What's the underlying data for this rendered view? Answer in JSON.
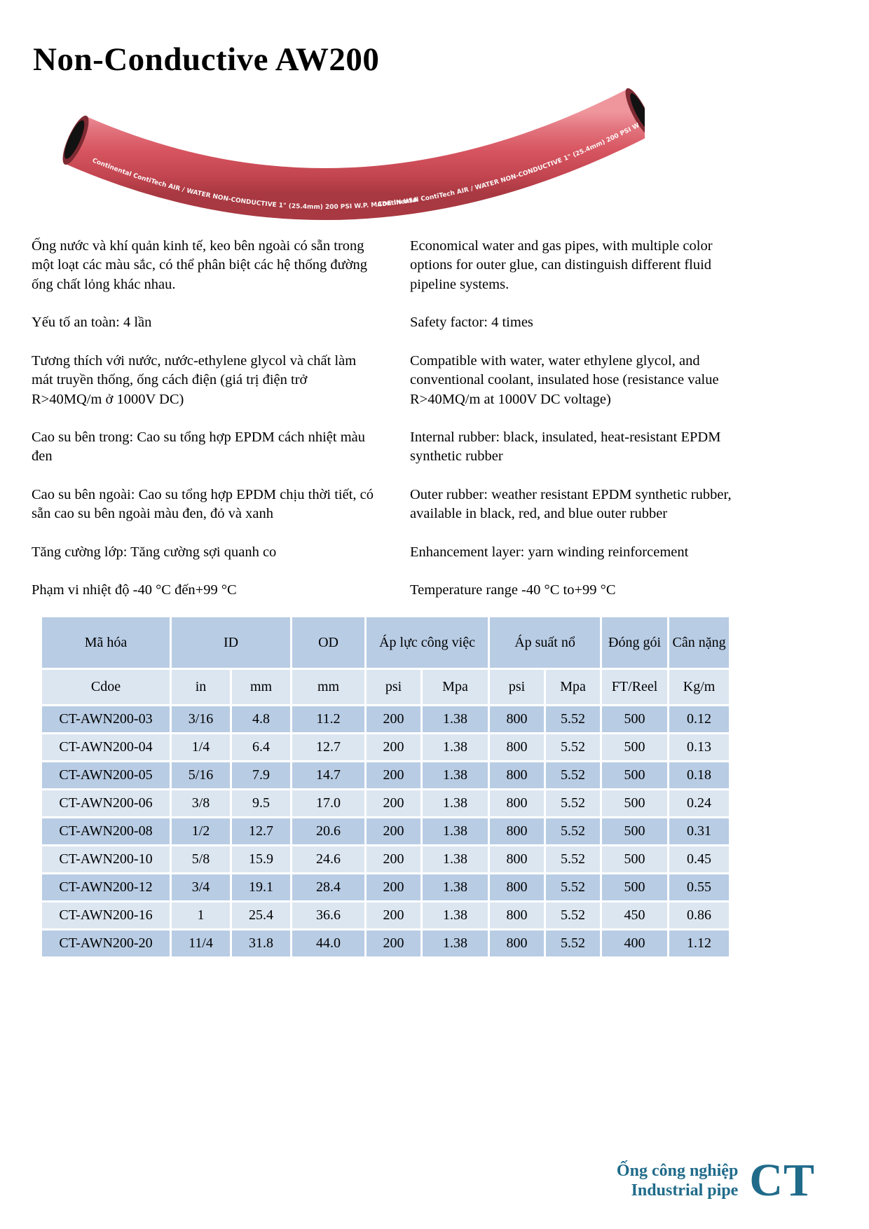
{
  "page": {
    "title": "Non-Conductive AW200"
  },
  "hose": {
    "print_line": "Continental  ContiTech    AIR / WATER NON-CONDUCTIVE  1\" (25.4mm) 200 PSI W.P. MADE IN USA",
    "color_main": "#d6545f",
    "color_shadow": "#a83841",
    "color_highlight": "#ef959c"
  },
  "description": {
    "vi": [
      "Ống nước và khí quản kinh tế, keo bên ngoài có sẵn trong một loạt các màu sắc, có thể phân biệt các hệ thống đường ống chất lỏng khác nhau.",
      "Yếu tố an toàn: 4 lần",
      "Tương thích với nước, nước-ethylene glycol và chất làm mát truyền thống, ống cách điện (giá trị điện trở R>40MQ/m ở 1000V DC)",
      "Cao su bên trong: Cao su tổng hợp EPDM cách nhiệt màu đen",
      "Cao su bên ngoài: Cao su tổng hợp EPDM chịu thời tiết, có sẵn cao su bên ngoài màu đen, đỏ và xanh",
      "Tăng cường lớp: Tăng cường sợi quanh co",
      "Phạm vi nhiệt độ -40 °C đến+99 °C"
    ],
    "en": [
      "Economical water and gas pipes, with multiple color options for outer glue, can distinguish different fluid pipeline systems.",
      "Safety factor: 4 times",
      "Compatible with water, water ethylene glycol, and conventional coolant, insulated hose (resistance value R>40MQ/m at 1000V DC voltage)",
      "Internal rubber: black, insulated, heat-resistant EPDM synthetic rubber",
      "Outer rubber: weather resistant EPDM synthetic rubber, available in black, red, and blue outer rubber",
      "Enhancement layer: yarn winding reinforcement",
      "Temperature range -40 °C to+99 °C"
    ]
  },
  "spec_table": {
    "header_groups": [
      {
        "label": "Mã hóa",
        "colspan": 1
      },
      {
        "label": "ID",
        "colspan": 2
      },
      {
        "label": "OD",
        "colspan": 1
      },
      {
        "label": "Áp lực công việc",
        "colspan": 2
      },
      {
        "label": "Áp suất nổ",
        "colspan": 2
      },
      {
        "label": "Đóng gói",
        "colspan": 1
      },
      {
        "label": "Cân nặng",
        "colspan": 1
      }
    ],
    "unit_row": [
      "Cdoe",
      "in",
      "mm",
      "mm",
      "psi",
      "Mpa",
      "psi",
      "Mpa",
      "FT/Reel",
      "Kg/m"
    ],
    "rows": [
      [
        "CT-AWN200-03",
        "3/16",
        "4.8",
        "11.2",
        "200",
        "1.38",
        "800",
        "5.52",
        "500",
        "0.12"
      ],
      [
        "CT-AWN200-04",
        "1/4",
        "6.4",
        "12.7",
        "200",
        "1.38",
        "800",
        "5.52",
        "500",
        "0.13"
      ],
      [
        "CT-AWN200-05",
        "5/16",
        "7.9",
        "14.7",
        "200",
        "1.38",
        "800",
        "5.52",
        "500",
        "0.18"
      ],
      [
        "CT-AWN200-06",
        "3/8",
        "9.5",
        "17.0",
        "200",
        "1.38",
        "800",
        "5.52",
        "500",
        "0.24"
      ],
      [
        "CT-AWN200-08",
        "1/2",
        "12.7",
        "20.6",
        "200",
        "1.38",
        "800",
        "5.52",
        "500",
        "0.31"
      ],
      [
        "CT-AWN200-10",
        "5/8",
        "15.9",
        "24.6",
        "200",
        "1.38",
        "800",
        "5.52",
        "500",
        "0.45"
      ],
      [
        "CT-AWN200-12",
        "3/4",
        "19.1",
        "28.4",
        "200",
        "1.38",
        "800",
        "5.52",
        "500",
        "0.55"
      ],
      [
        "CT-AWN200-16",
        "1",
        "25.4",
        "36.6",
        "200",
        "1.38",
        "800",
        "5.52",
        "450",
        "0.86"
      ],
      [
        "CT-AWN200-20",
        "11/4",
        "31.8",
        "44.0",
        "200",
        "1.38",
        "800",
        "5.52",
        "400",
        "1.12"
      ]
    ],
    "colors": {
      "row_dark": "#b8cce4",
      "row_light": "#dce6f1"
    }
  },
  "footer": {
    "line1": "Ống công nghiệp",
    "line2": "Industrial pipe",
    "logo": "CT",
    "color": "#206b8a"
  }
}
